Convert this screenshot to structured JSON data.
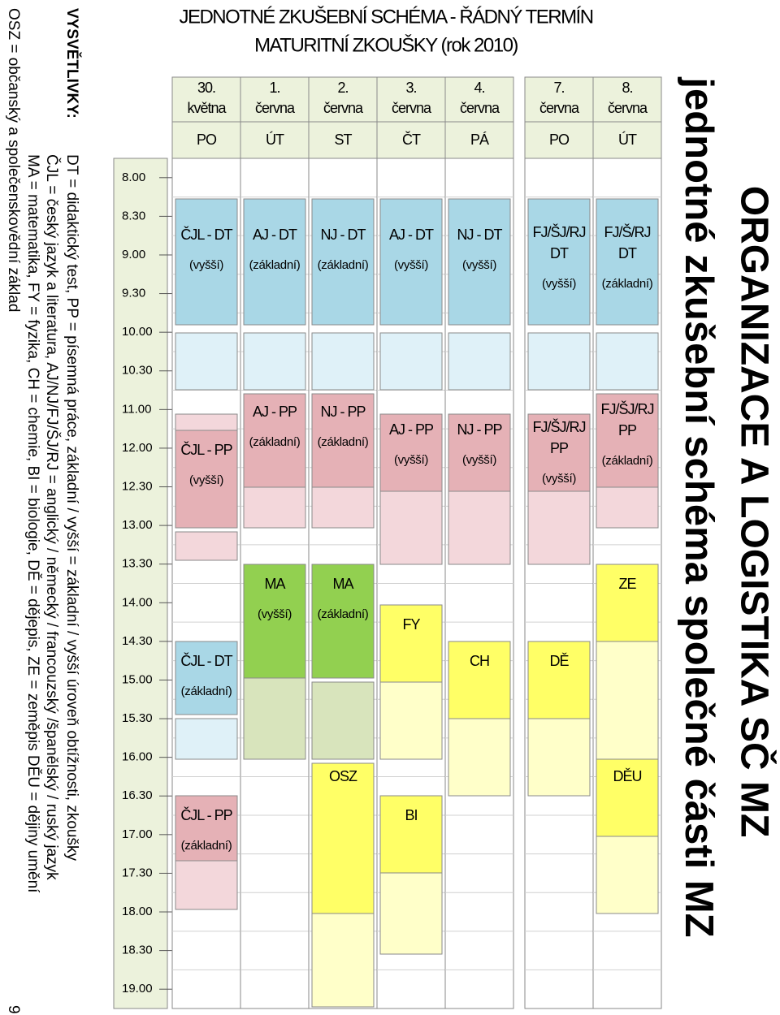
{
  "title": "ORGANIZACE A LOGISTIKA SČ MZ",
  "subtitle": "jednotné zkušební schéma společné části MZ",
  "schedule": {
    "title_lines": [
      "JEDNOTNÉ ZKUŠEBNÍ SCHÉMA - ŘÁDNÝ TERMÍN",
      "MATURITNÍ ZKOUŠKY (rok 2010)"
    ],
    "times": [
      "8.00",
      "8.30",
      "9.00",
      "9.30",
      "10.00",
      "10.30",
      "11.00",
      "12.00",
      "12.30",
      "13.00",
      "13.30",
      "14.00",
      "14.30",
      "15.00",
      "15.30",
      "16.00",
      "16.30",
      "17.00",
      "17.30",
      "18.00",
      "18.30",
      "19.00"
    ],
    "columns": [
      {
        "date": "30.",
        "month": "května",
        "weekday": "PO",
        "events": [
          [
            "ČJL - DT",
            "(vyšší)"
          ],
          [
            "ČJL - PP",
            "(vyšší)"
          ],
          [
            "ČJL - DT",
            "(základní)"
          ],
          [
            "ČJL - PP",
            "(základní)"
          ]
        ]
      },
      {
        "date": "1.",
        "month": "června",
        "weekday": "ÚT",
        "events": [
          [
            "AJ - DT",
            "(základní)"
          ],
          [
            "AJ - PP",
            "(základní)"
          ],
          [
            "MA",
            "(vyšší)"
          ]
        ]
      },
      {
        "date": "2.",
        "month": "června",
        "weekday": "ST",
        "events": [
          [
            "NJ - DT",
            "(základní)"
          ],
          [
            "NJ - PP",
            "(základní)"
          ],
          [
            "MA",
            "(základní)"
          ],
          [
            "OSZ"
          ]
        ]
      },
      {
        "date": "3.",
        "month": "června",
        "weekday": "ČT",
        "events": [
          [
            "AJ - DT",
            "(vyšší)"
          ],
          [
            "AJ - PP",
            "(vyšší)"
          ],
          [
            "FY"
          ],
          [
            "BI"
          ]
        ]
      },
      {
        "date": "4.",
        "month": "června",
        "weekday": "PÁ",
        "events": [
          [
            "NJ - DT",
            "(vyšší)"
          ],
          [
            "NJ - PP",
            "(vyšší)"
          ],
          [
            "CH"
          ]
        ]
      },
      {
        "date": "7.",
        "month": "června",
        "weekday": "PO",
        "events": [
          [
            "FJ/ŠJ/RJ",
            "DT",
            "(vyšší)"
          ],
          [
            "FJ/ŠJ/RJ",
            "PP",
            "(vyšší)"
          ],
          [
            "DĚ"
          ]
        ]
      },
      {
        "date": "8.",
        "month": "června",
        "weekday": "ÚT",
        "events": [
          [
            "FJ/Š/RJ",
            "DT",
            "(základní)"
          ],
          [
            "FJ/ŠJ/RJ",
            "PP",
            "(základní)"
          ],
          [
            "ZE"
          ],
          [
            "DĚU"
          ]
        ]
      }
    ]
  },
  "legend": {
    "heading": "VYSVĚTLIVKY:",
    "lines": [
      "DT = didaktický test, PP = písemná práce, základní / vyšší = základní / vyšší úroveň obtížnosti, zkoušky",
      "ČJL = český jazyk a literatura, AJ/NJ/FJ/ŠJ/RJ = anglický / německý / francouzský /španělský / ruský jazyk",
      "MA = matematika, FY = fyzika, CH = chemie, BI = biologie, DĚ = dějepis, ZE = zeměpis DĚU = dějiny umění",
      "OSZ = občanský a společenskovědní základ"
    ]
  },
  "page_number": "9"
}
